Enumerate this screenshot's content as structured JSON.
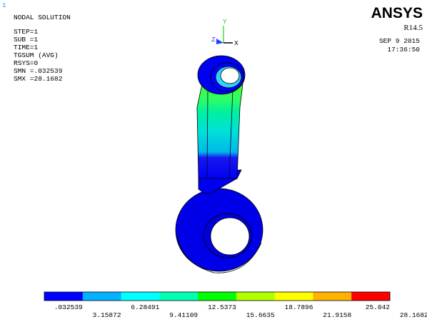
{
  "window_number": "1",
  "header": {
    "title": "NODAL SOLUTION",
    "lines": [
      "STEP=1",
      "SUB =1",
      "TIME=1",
      "TGSUM    (AVG)",
      "RSYS=0",
      "SMN =.032539",
      "SMX =28.1682"
    ]
  },
  "logo": {
    "name": "ANSYS",
    "release": "R14.5",
    "date": "SEP  9 2015",
    "time": "17:36:50"
  },
  "triad": {
    "y": "Y",
    "z": "Z",
    "x": "X"
  },
  "legend": {
    "colors": [
      "#0000ff",
      "#00b2ff",
      "#00ffff",
      "#00ffb2",
      "#00ff00",
      "#b2ff00",
      "#ffff00",
      "#ffb200",
      "#ff0000"
    ],
    "labels": [
      ".032539",
      "3.15872",
      "6.28491",
      "9.41109",
      "12.5373",
      "15.6635",
      "18.7896",
      "21.9158",
      "25.042",
      "28.1682"
    ]
  }
}
